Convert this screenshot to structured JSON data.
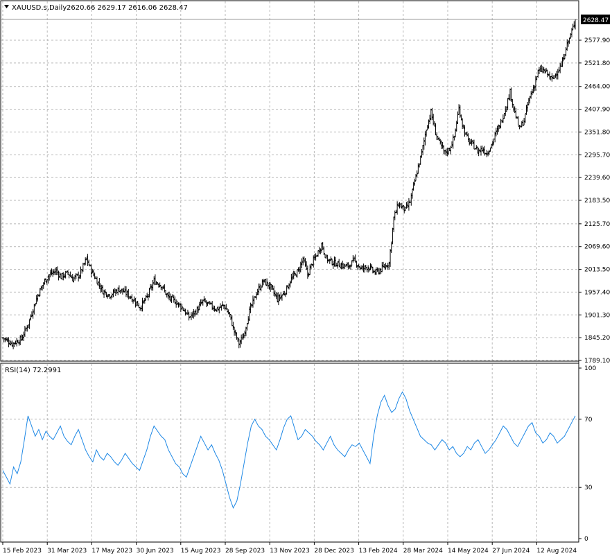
{
  "header": {
    "symbol": "XAUUSD.s,Daily",
    "ohlc": "2620.66 2629.17 2616.06 2628.47"
  },
  "chart_data": [
    {
      "type": "bar",
      "subtype": "ohlc",
      "series": [
        {
          "name": "XAUUSD.s,Daily"
        }
      ],
      "price_axis": {
        "ticks": [
          "2577.90",
          "2521.80",
          "2464.00",
          "2407.90",
          "2351.80",
          "2295.70",
          "2239.60",
          "2183.50",
          "2125.70",
          "2069.60",
          "2013.50",
          "1957.40",
          "1901.30",
          "1845.20",
          "1789.10"
        ],
        "ylim": [
          1789.1,
          2640.0
        ],
        "current_price": "2628.47"
      },
      "time_axis": {
        "ticks": [
          "15 Feb 2023",
          "31 Mar 2023",
          "17 May 2023",
          "30 Jun 2023",
          "15 Aug 2023",
          "28 Sep 2023",
          "13 Nov 2023",
          "28 Dec 2023",
          "13 Feb 2024",
          "28 Mar 2024",
          "14 May 2024",
          "27 Jun 2024",
          "12 Aug 2024"
        ]
      },
      "close_path_keypoints": [
        [
          0,
          1845
        ],
        [
          8,
          1830
        ],
        [
          16,
          1842
        ],
        [
          22,
          1880
        ],
        [
          30,
          1950
        ],
        [
          36,
          1985
        ],
        [
          40,
          2000
        ],
        [
          46,
          2010
        ],
        [
          50,
          1995
        ],
        [
          56,
          2005
        ],
        [
          60,
          1990
        ],
        [
          66,
          2000
        ],
        [
          72,
          2040
        ],
        [
          76,
          2010
        ],
        [
          80,
          1990
        ],
        [
          86,
          1960
        ],
        [
          92,
          1950
        ],
        [
          100,
          1965
        ],
        [
          106,
          1955
        ],
        [
          112,
          1940
        ],
        [
          118,
          1920
        ],
        [
          124,
          1945
        ],
        [
          130,
          1985
        ],
        [
          136,
          1975
        ],
        [
          142,
          1945
        ],
        [
          148,
          1935
        ],
        [
          154,
          1920
        ],
        [
          160,
          1895
        ],
        [
          166,
          1910
        ],
        [
          172,
          1935
        ],
        [
          178,
          1925
        ],
        [
          184,
          1915
        ],
        [
          190,
          1925
        ],
        [
          195,
          1900
        ],
        [
          199,
          1860
        ],
        [
          203,
          1830
        ],
        [
          207,
          1850
        ],
        [
          212,
          1910
        ],
        [
          218,
          1955
        ],
        [
          224,
          1985
        ],
        [
          230,
          1970
        ],
        [
          236,
          1940
        ],
        [
          242,
          1955
        ],
        [
          248,
          1990
        ],
        [
          254,
          2010
        ],
        [
          258,
          2040
        ],
        [
          262,
          2000
        ],
        [
          266,
          2030
        ],
        [
          270,
          2050
        ],
        [
          274,
          2075
        ],
        [
          278,
          2040
        ],
        [
          284,
          2030
        ],
        [
          290,
          2025
        ],
        [
          296,
          2020
        ],
        [
          302,
          2035
        ],
        [
          308,
          2015
        ],
        [
          314,
          2020
        ],
        [
          320,
          2005
        ],
        [
          326,
          2015
        ],
        [
          332,
          2030
        ],
        [
          336,
          2140
        ],
        [
          340,
          2175
        ],
        [
          346,
          2160
        ],
        [
          350,
          2180
        ],
        [
          354,
          2230
        ],
        [
          360,
          2300
        ],
        [
          364,
          2360
        ],
        [
          368,
          2400
        ],
        [
          372,
          2350
        ],
        [
          376,
          2320
        ],
        [
          380,
          2300
        ],
        [
          384,
          2310
        ],
        [
          388,
          2340
        ],
        [
          392,
          2410
        ],
        [
          396,
          2360
        ],
        [
          400,
          2330
        ],
        [
          404,
          2320
        ],
        [
          408,
          2305
        ],
        [
          412,
          2310
        ],
        [
          416,
          2300
        ],
        [
          420,
          2320
        ],
        [
          424,
          2350
        ],
        [
          428,
          2375
        ],
        [
          432,
          2410
        ],
        [
          436,
          2450
        ],
        [
          440,
          2400
        ],
        [
          444,
          2360
        ],
        [
          448,
          2380
        ],
        [
          452,
          2430
        ],
        [
          456,
          2460
        ],
        [
          460,
          2500
        ],
        [
          464,
          2505
        ],
        [
          468,
          2495
        ],
        [
          472,
          2480
        ],
        [
          476,
          2500
        ],
        [
          480,
          2515
        ],
        [
          484,
          2560
        ],
        [
          488,
          2590
        ],
        [
          492,
          2628
        ]
      ]
    },
    {
      "type": "line",
      "series": [
        {
          "name": "RSI(14) 72.2991"
        }
      ],
      "value_axis": {
        "ticks": [
          "100",
          "70",
          "30",
          "0"
        ],
        "ylim": [
          0,
          100
        ]
      },
      "values": [
        40,
        36,
        32,
        42,
        38,
        45,
        58,
        72,
        66,
        60,
        64,
        58,
        63,
        60,
        58,
        62,
        66,
        60,
        57,
        55,
        60,
        64,
        58,
        52,
        48,
        45,
        52,
        48,
        46,
        50,
        48,
        45,
        43,
        46,
        50,
        47,
        44,
        42,
        40,
        46,
        52,
        60,
        66,
        63,
        60,
        58,
        52,
        48,
        44,
        42,
        38,
        36,
        42,
        48,
        54,
        60,
        56,
        52,
        55,
        50,
        46,
        40,
        32,
        24,
        18,
        22,
        32,
        44,
        56,
        66,
        70,
        66,
        64,
        60,
        58,
        55,
        52,
        58,
        65,
        70,
        72,
        65,
        58,
        60,
        64,
        62,
        60,
        57,
        55,
        52,
        56,
        60,
        55,
        52,
        50,
        48,
        52,
        55,
        54,
        56,
        52,
        48,
        44,
        60,
        72,
        80,
        84,
        78,
        74,
        76,
        82,
        86,
        82,
        75,
        70,
        65,
        60,
        58,
        56,
        55,
        52,
        55,
        58,
        56,
        52,
        54,
        50,
        48,
        50,
        54,
        52,
        56,
        58,
        54,
        50,
        52,
        55,
        58,
        62,
        66,
        64,
        60,
        56,
        54,
        58,
        62,
        66,
        68,
        62,
        60,
        56,
        58,
        62,
        60,
        56,
        58,
        60,
        64,
        68,
        72
      ]
    }
  ]
}
